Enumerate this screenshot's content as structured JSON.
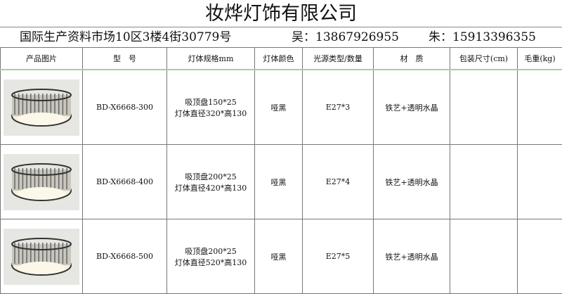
{
  "title": "妆烨灯饰有限公司",
  "address": "国际生产资料市场10区3楼4街30779号",
  "contact1": "吴：13867926955",
  "contact2": "朱：15913396355",
  "headers": [
    "产品图片",
    "型　号",
    "灯体规格mm",
    "灯体颜色",
    "光源类型/数量",
    "材　质",
    "包装尺寸(cm)",
    "毛重(kg)"
  ],
  "rows": [
    {
      "image": "crystal-ceiling-lamp",
      "model": "BD-X6668-300",
      "spec1": "吸顶盘150*25",
      "spec2": "灯体直径320*高130",
      "color": "哑黑",
      "light": "E27*3",
      "material": "铁艺+透明水晶",
      "package": "",
      "weight": ""
    },
    {
      "image": "crystal-ceiling-lamp",
      "model": "BD-X6668-400",
      "spec1": "吸顶盘200*25",
      "spec2": "灯体直径420*高130",
      "color": "哑黑",
      "light": "E27*4",
      "material": "铁艺+透明水晶",
      "package": "",
      "weight": ""
    },
    {
      "image": "crystal-ceiling-lamp",
      "model": "BD-X6668-500",
      "spec1": "吸顶盘200*25",
      "spec2": "灯体直径520*高130",
      "color": "哑黑",
      "light": "E27*5",
      "material": "铁艺+透明水晶",
      "package": "",
      "weight": ""
    }
  ]
}
